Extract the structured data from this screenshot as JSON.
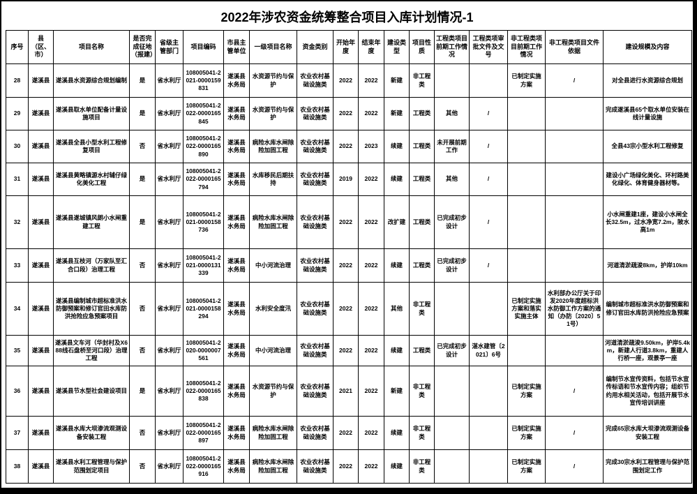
{
  "page": {
    "title": "2022年涉农资金统筹整合项目入库计划情况-1"
  },
  "table": {
    "columns": [
      "序号",
      "县（区、市）",
      "项目名称",
      "是否完成征地（报建）",
      "省级主管部门",
      "项目编码",
      "市县主管单位",
      "一级项目名称",
      "资金类别",
      "开始年度",
      "结束年度",
      "建设类型",
      "项目性质",
      "工程类项目前期工作情况",
      "工程类项审批文件及文号",
      "非工程类项目前期工作情况",
      "非工程类项目文件依据",
      "建设规模及内容"
    ],
    "rows": [
      [
        "28",
        "遂溪县",
        "遂溪县水资源综合规划编制",
        "是",
        "省水利厅",
        "108005041-2021-0000159831",
        "遂溪县水务局",
        "水资源节约与保护",
        "农业农村基础设施类",
        "2022",
        "2022",
        "新建",
        "非工程类",
        "",
        "",
        "已制定实施方案",
        "/",
        "对全县进行水资源综合规划"
      ],
      [
        "29",
        "遂溪县",
        "遂溪县取水单位配备计量设施项目",
        "是",
        "省水利厅",
        "108005041-2022-0000165845",
        "遂溪县水务局",
        "水资源节约与保护",
        "农业农村基础设施类",
        "2022",
        "2022",
        "新建",
        "工程类",
        "其他",
        "/",
        "",
        "",
        "完成遂溪县65个取水单位安装在线计量设施"
      ],
      [
        "30",
        "遂溪县",
        "遂溪县全县小型水利工程修复项目",
        "否",
        "省水利厅",
        "108005041-2022-0000165890",
        "遂溪县水务局",
        "病险水库水闸除险加固工程",
        "农业农村基础设施类",
        "2022",
        "2023",
        "续建",
        "工程类",
        "未开展前期工作",
        "/",
        "",
        "",
        "全县43宗小型水利工程修复"
      ],
      [
        "31",
        "遂溪县",
        "遂溪县黄略镇源水村辅仔绿化美化工程",
        "是",
        "省水利厅",
        "108005041-2022-0000165794",
        "遂溪县水务局",
        "水库移民后期扶持",
        "农业农村基础设施类",
        "2019",
        "2022",
        "续建",
        "工程类",
        "其他",
        "/",
        "",
        "",
        "建设小广场绿化美化、环村路美化绿化、体育健身器材等。"
      ],
      [
        "32",
        "遂溪县",
        "遂溪县遂城镇风朗小水闸重建工程",
        "是",
        "省水利厅",
        "108005041-2021-0000158736",
        "遂溪县水务局",
        "病险水库水闸除险加固工程",
        "农业农村基础设施类",
        "2022",
        "2022",
        "改扩建",
        "工程类",
        "已完成初步设计",
        "/",
        "",
        "",
        "小水闸重建1座，建设小水闸全长32.5m，过水净宽7.2m，陂水高1m"
      ],
      [
        "33",
        "遂溪县",
        "遂溪县互枝河（万家队至汇合口段）治理工程",
        "否",
        "省水利厅",
        "108005041-2021-0000131339",
        "遂溪县水务局",
        "中小河流治理",
        "农业农村基础设施类",
        "2022",
        "2022",
        "续建",
        "工程类",
        "已完成初步设计",
        "/",
        "",
        "",
        "河道清淤疏浚8km，护岸10km"
      ],
      [
        "34",
        "遂溪县",
        "遂溪县编制城市超标准洪水防御预案和修订官田水库防洪抢险应急预案项目",
        "否",
        "省水利厅",
        "108005041-2021-0000158294",
        "遂溪县水务局",
        "水利安全度汛",
        "农业农村基础设施类",
        "2022",
        "2022",
        "其他",
        "非工程类",
        "",
        "",
        "已制定实施方案和落实实施主体",
        "水利部办公厅关于印发2020年度超标洪水防御工作方案的通知（办防〔2020〕51号）",
        "编制城市超标准洪水防御预案和修订官田水库防洪抢险应急预案"
      ],
      [
        "35",
        "遂溪县",
        "遂溪县文车河（华封村及X688线石盘桥至河口段）治理工程",
        "否",
        "省水利厅",
        "108005041-2020-0000007561",
        "遂溪县水务局",
        "中小河流治理",
        "农业农村基础设施类",
        "2022",
        "2022",
        "续建",
        "工程类",
        "已完成初步设计",
        "湛水建管〔2021〕6号",
        "",
        "",
        "河道清淤疏浚9.50km，护岸5.4km，新建人行道3.8km，重建人行桥一座，观景亭一座"
      ],
      [
        "36",
        "遂溪县",
        "遂溪县节水型社会建设项目",
        "是",
        "省水利厅",
        "108005041-2022-0000165838",
        "遂溪县水务局",
        "水资源节约与保护",
        "农业农村基础设施类",
        "2021",
        "2022",
        "新建",
        "非工程类",
        "",
        "",
        "已制定实施方案",
        "/",
        "编制节水宣传资料，包括节水宣传标语和节水宣传内容；组织节约用水相关活动，包括开展节水宣传培训讲座"
      ],
      [
        "37",
        "遂溪县",
        "遂溪县水库大坝渗流观测设备安装工程",
        "否",
        "省水利厅",
        "108005041-2022-0000165897",
        "遂溪县水务局",
        "病险水库水闸除险加固工程",
        "农业农村基础设施类",
        "2022",
        "2022",
        "续建",
        "非工程类",
        "",
        "",
        "已制定实施方案",
        "/",
        "完成65宗水库大坝渗流观测设备安装工程"
      ],
      [
        "38",
        "遂溪县",
        "遂溪县水利工程管理与保护范围划定项目",
        "否",
        "省水利厅",
        "108005041-2022-0000165916",
        "遂溪县水务局",
        "病险水库水闸除险加固工程",
        "农业农村基础设施类",
        "2022",
        "2022",
        "续建",
        "非工程类",
        "",
        "",
        "已制定实施方案",
        "/",
        "完成30宗水利工程管理与保护范围划定工作"
      ]
    ]
  }
}
